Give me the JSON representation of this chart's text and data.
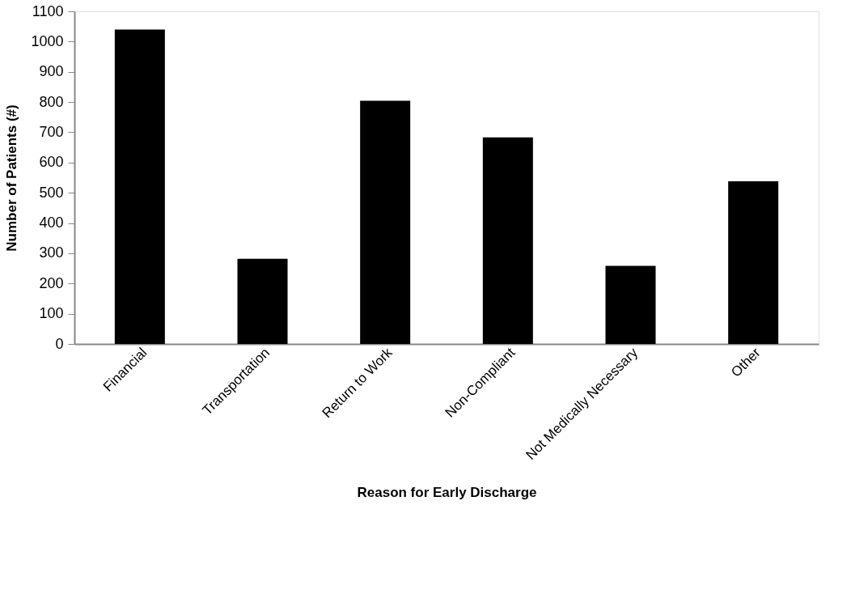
{
  "chart_data": {
    "type": "bar",
    "xlabel": "Reason for Early Discharge",
    "ylabel": "Number of Patients (#)",
    "categories": [
      "Financial",
      "Transportation",
      "Return to Work",
      "Non-Compliant",
      "Not Medically Necessary",
      "Other"
    ],
    "values": [
      1040,
      282,
      804,
      683,
      258,
      538
    ],
    "color": "#000000",
    "ylim": [
      0,
      1100
    ],
    "yticks": [
      0,
      100,
      200,
      300,
      400,
      500,
      600,
      700,
      800,
      900,
      1000,
      1100
    ],
    "grid": false
  }
}
